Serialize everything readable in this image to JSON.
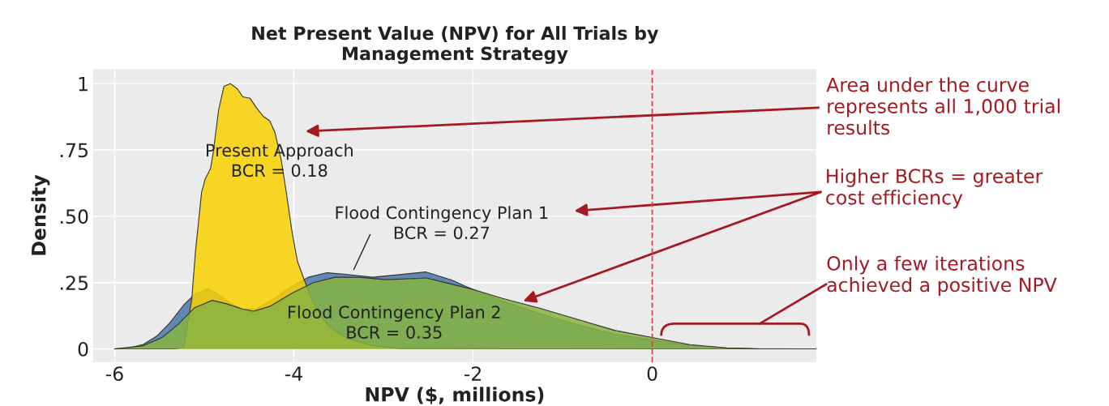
{
  "chart_data": {
    "type": "area",
    "title": "Net Present Value (NPV) for All Trials by\nManagement Strategy",
    "xlabel": "NPV ($, millions)",
    "ylabel": "Density",
    "xlim": [
      -6.24,
      1.83
    ],
    "ylim": [
      -0.05,
      1.055
    ],
    "xticks": [
      -6,
      -4,
      -2,
      0
    ],
    "yticks": [
      {
        "value": 0,
        "label": "0"
      },
      {
        "value": 0.25,
        "label": ".25"
      },
      {
        "value": 0.5,
        "label": ".50"
      },
      {
        "value": 0.75,
        "label": ".75"
      },
      {
        "value": 1,
        "label": "1"
      }
    ],
    "grid": true,
    "series": [
      {
        "name": "Flood Contingency Plan 1\nBCR = 0.27",
        "color": "#4a76a8",
        "x": [
          -6,
          -5.83,
          -5.68,
          -5.53,
          -5.38,
          -5.23,
          -5.11,
          -4.96,
          -4.84,
          -4.69,
          -4.57,
          -4.42,
          -4.24,
          -4.02,
          -3.84,
          -3.63,
          -3.42,
          -3.12,
          -2.82,
          -2.53,
          -2.24,
          -2.08,
          -1.67,
          -1.25,
          -0.83,
          -0.42,
          0,
          0.42,
          0.83,
          1.2,
          1.83
        ],
        "values": [
          0,
          0.004,
          0.017,
          0.048,
          0.1,
          0.165,
          0.205,
          0.226,
          0.205,
          0.17,
          0.15,
          0.15,
          0.185,
          0.236,
          0.27,
          0.287,
          0.281,
          0.27,
          0.28,
          0.29,
          0.26,
          0.235,
          0.18,
          0.132,
          0.091,
          0.055,
          0.034,
          0.013,
          0.003,
          0,
          0
        ]
      },
      {
        "name": "Present Approach\nBCR = 0.18",
        "color": "#f9d100",
        "x": [
          -6,
          -5.32,
          -5.23,
          -5.14,
          -5.1,
          -5.03,
          -4.99,
          -4.93,
          -4.9,
          -4.84,
          -4.78,
          -4.71,
          -4.63,
          -4.57,
          -4.49,
          -4.42,
          -4.34,
          -4.27,
          -4.21,
          -4.14,
          -4.08,
          -4.02,
          -3.96,
          -3.89,
          -3.81,
          -3.72,
          -3.6,
          -3.42,
          -3.12,
          -2.82,
          1.83
        ],
        "values": [
          0,
          0,
          0.007,
          0.185,
          0.36,
          0.59,
          0.64,
          0.68,
          0.74,
          0.9,
          0.99,
          1.0,
          0.98,
          0.95,
          0.945,
          0.91,
          0.876,
          0.86,
          0.815,
          0.71,
          0.58,
          0.44,
          0.33,
          0.266,
          0.195,
          0.134,
          0.083,
          0.043,
          0.012,
          0.002,
          0
        ]
      },
      {
        "name": "Flood Contingency Plan 2\nBCR = 0.35",
        "color": "#86b341",
        "x": [
          -6,
          -5.68,
          -5.47,
          -5.29,
          -5.11,
          -4.91,
          -4.75,
          -4.57,
          -4.45,
          -4.27,
          -4.02,
          -3.78,
          -3.54,
          -3.27,
          -2.97,
          -2.58,
          -2.53,
          -2.24,
          -1.99,
          -1.67,
          -1.25,
          -0.83,
          -0.42,
          0,
          0.42,
          0.83,
          1.2,
          1.83
        ],
        "values": [
          0,
          0.012,
          0.043,
          0.093,
          0.155,
          0.183,
          0.17,
          0.15,
          0.142,
          0.16,
          0.21,
          0.25,
          0.27,
          0.27,
          0.261,
          0.266,
          0.268,
          0.244,
          0.223,
          0.19,
          0.153,
          0.111,
          0.07,
          0.043,
          0.016,
          0.004,
          0,
          0
        ]
      }
    ],
    "ref_lines": [
      {
        "axis": "x",
        "value": 0,
        "color": "#d9434a",
        "line_style": "dashed"
      }
    ],
    "annotations": [
      "Area under the curve\nrepresents all 1,000 trial\nresults",
      {
        "text": "Higher BCRs = greater\ncost efficiency",
        "x": -1.44,
        "y": 0.18
      },
      "Only a few iterations\nachieved a positive NPV"
    ]
  }
}
